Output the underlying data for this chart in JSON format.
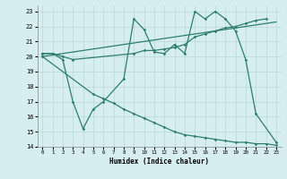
{
  "xlabel": "Humidex (Indice chaleur)",
  "xlim": [
    -0.5,
    23.5
  ],
  "ylim": [
    14,
    23.4
  ],
  "yticks": [
    14,
    15,
    16,
    17,
    18,
    19,
    20,
    21,
    22,
    23
  ],
  "xticks": [
    0,
    1,
    2,
    3,
    4,
    5,
    6,
    7,
    8,
    9,
    10,
    11,
    12,
    13,
    14,
    15,
    16,
    17,
    18,
    19,
    20,
    21,
    22,
    23
  ],
  "bg_color": "#d6eef0",
  "line_color": "#2e7d6e",
  "grid_color": "#b8d8d8",
  "line1_x": [
    0,
    1,
    2,
    3,
    4,
    5,
    6,
    8,
    9,
    10,
    11,
    12,
    13,
    14,
    15,
    16,
    17,
    18,
    19,
    20,
    21,
    23
  ],
  "line1_y": [
    20.2,
    20.2,
    19.8,
    17.0,
    15.2,
    16.5,
    17.0,
    18.5,
    22.5,
    21.8,
    20.3,
    20.2,
    20.8,
    20.2,
    23.0,
    22.5,
    23.0,
    22.5,
    21.7,
    19.8,
    16.2,
    14.3
  ],
  "line2_x": [
    0,
    1,
    2,
    3,
    9,
    10,
    11,
    12,
    13,
    14,
    15,
    16,
    17,
    18,
    19,
    20,
    21,
    22
  ],
  "line2_y": [
    20.2,
    20.2,
    20.0,
    19.8,
    20.2,
    20.4,
    20.4,
    20.5,
    20.6,
    20.8,
    21.3,
    21.5,
    21.7,
    21.9,
    22.0,
    22.2,
    22.4,
    22.5
  ],
  "line3_x": [
    0,
    23
  ],
  "line3_y": [
    20.0,
    22.3
  ],
  "line4_x": [
    0,
    5,
    6,
    7,
    8,
    9,
    10,
    11,
    12,
    13,
    14,
    15,
    16,
    17,
    18,
    19,
    20,
    21,
    22,
    23
  ],
  "line4_y": [
    20.0,
    17.5,
    17.2,
    16.9,
    16.5,
    16.2,
    15.9,
    15.6,
    15.3,
    15.0,
    14.8,
    14.7,
    14.6,
    14.5,
    14.4,
    14.3,
    14.3,
    14.2,
    14.2,
    14.1
  ]
}
